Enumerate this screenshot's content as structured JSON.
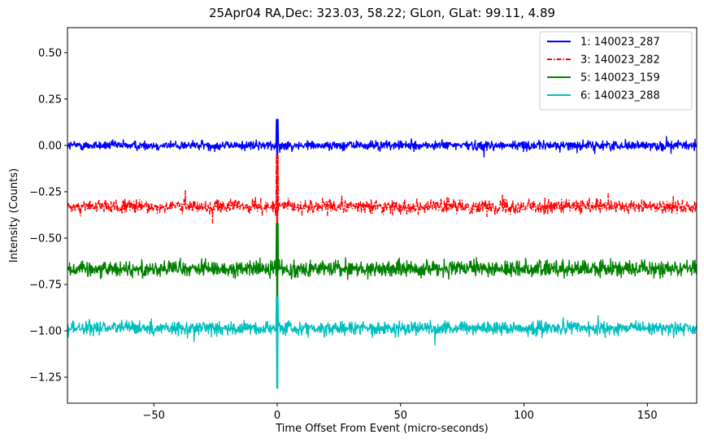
{
  "chart_data": {
    "type": "line",
    "title": "25Apr04 RA,Dec:  323.03,  58.22; GLon, GLat:   99.11,   4.89",
    "xlabel": "Time Offset From Event (micro-seconds)",
    "ylabel": "Intensity (Counts)",
    "xlim": [
      -85,
      170
    ],
    "ylim": [
      -1.39,
      0.635
    ],
    "x_ticks": [
      -50,
      0,
      50,
      100,
      150
    ],
    "x_tick_labels": [
      "−50",
      "0",
      "50",
      "100",
      "150"
    ],
    "y_ticks": [
      0.5,
      0.25,
      0.0,
      -0.25,
      -0.5,
      -0.75,
      -1.0,
      -1.25
    ],
    "y_tick_labels": [
      "0.50",
      "0.25",
      "0.00",
      "−0.25",
      "−0.50",
      "−0.75",
      "−1.00",
      "−1.25"
    ],
    "legend_position": "top-right",
    "series": [
      {
        "name": "1: 140023_287",
        "color": "#0000ff",
        "dash": "solid",
        "baseline": 0.0,
        "noise": 0.045,
        "spike_min": -0.05,
        "spike_max": 0.14
      },
      {
        "name": "3: 140023_282",
        "color": "#ff0000",
        "dash": "dashdot",
        "baseline": -0.33,
        "noise": 0.065,
        "spike_min": -0.42,
        "spike_max": -0.05
      },
      {
        "name": "5: 140023_159",
        "color": "#008000",
        "dash": "solid",
        "baseline": -0.665,
        "noise": 0.075,
        "spike_min": -0.82,
        "spike_max": -0.42
      },
      {
        "name": "6: 140023_288",
        "color": "#00bfbf",
        "dash": "solid",
        "baseline": -0.985,
        "noise": 0.065,
        "spike_min": -1.31,
        "spike_max": -0.82
      }
    ]
  }
}
